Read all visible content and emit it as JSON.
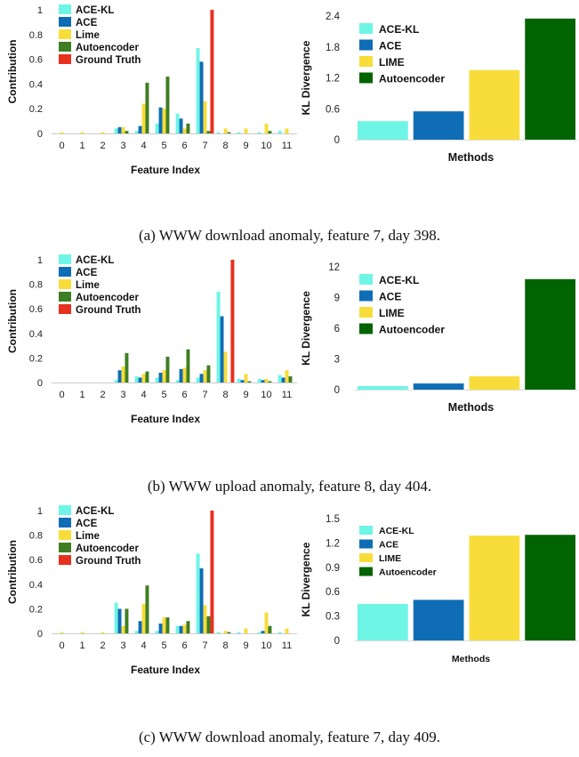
{
  "colors": {
    "ace_kl": "#6ef5e6",
    "ace": "#0f6db5",
    "lime": "#f8dd3a",
    "autoencoder": "#3f7e23",
    "ground_truth": "#e8301e",
    "ae_dark": "#006400"
  },
  "panels": [
    {
      "caption": "(a) WWW download anomaly, feature 7, day 398.",
      "left": {
        "type": "bar",
        "ylabel": "Contribution",
        "xlabel": "Feature Index",
        "ylim": [
          0,
          1
        ],
        "yticks": [
          "0",
          "0.2",
          "0.4",
          "0.6",
          "0.8",
          "1"
        ],
        "categories": [
          "0",
          "1",
          "2",
          "3",
          "4",
          "5",
          "6",
          "7",
          "8",
          "9",
          "10",
          "11"
        ],
        "legend": [
          "ACE-KL",
          "ACE",
          "Lime",
          "Autoencoder",
          "Ground Truth"
        ],
        "series": [
          {
            "name": "ACE-KL",
            "values": [
              0,
              0,
              0,
              0.04,
              0.02,
              0.08,
              0.16,
              0.69,
              0.01,
              0.01,
              0.01,
              0.02
            ]
          },
          {
            "name": "ACE",
            "values": [
              0,
              0,
              0,
              0.05,
              0.06,
              0.21,
              0.12,
              0.58,
              0,
              0,
              0,
              0
            ]
          },
          {
            "name": "Lime",
            "values": [
              0.01,
              0.01,
              0.01,
              0.05,
              0.24,
              0.2,
              0.04,
              0.26,
              0.04,
              0.04,
              0.08,
              0.04
            ]
          },
          {
            "name": "Autoencoder",
            "values": [
              0,
              0,
              0,
              0.02,
              0.41,
              0.46,
              0.08,
              0.02,
              0.01,
              0,
              0.02,
              0
            ]
          },
          {
            "name": "Ground Truth",
            "values": [
              0,
              0,
              0,
              0,
              0,
              0,
              0,
              1,
              0,
              0,
              0,
              0
            ]
          }
        ]
      },
      "right": {
        "type": "bar",
        "ylabel": "KL Divergence",
        "xlabel": "Methods",
        "ylim": [
          0,
          2.4
        ],
        "yticks": [
          "0",
          "0.6",
          "1.2",
          "1.8",
          "2.4"
        ],
        "legend": [
          "ACE-KL",
          "ACE",
          "LIME",
          "Autoencoder"
        ],
        "categories": [
          "ACE-KL",
          "ACE",
          "LIME",
          "Autoencoder"
        ],
        "values": [
          0.36,
          0.55,
          1.35,
          2.35
        ]
      }
    },
    {
      "caption": "(b) WWW upload anomaly, feature 8, day 404.",
      "left": {
        "type": "bar",
        "ylabel": "Contribution",
        "xlabel": "Feature Index",
        "ylim": [
          0,
          1
        ],
        "yticks": [
          "0",
          "0.2",
          "0.4",
          "0.6",
          "0.8",
          "1"
        ],
        "categories": [
          "0",
          "1",
          "2",
          "3",
          "4",
          "5",
          "6",
          "7",
          "8",
          "9",
          "10",
          "11"
        ],
        "legend": [
          "ACE-KL",
          "ACE",
          "Lime",
          "Autoencoder",
          "Ground Truth"
        ],
        "series": [
          {
            "name": "ACE-KL",
            "values": [
              0,
              0,
              0,
              0.02,
              0.05,
              0.04,
              0.02,
              0.04,
              0.74,
              0.03,
              0.03,
              0.06
            ]
          },
          {
            "name": "ACE",
            "values": [
              0,
              0,
              0,
              0.1,
              0.04,
              0.08,
              0.11,
              0.07,
              0.54,
              0.02,
              0.02,
              0.04
            ]
          },
          {
            "name": "Lime",
            "values": [
              0,
              0,
              0,
              0.13,
              0.07,
              0.1,
              0.12,
              0.1,
              0.25,
              0.07,
              0.03,
              0.1
            ]
          },
          {
            "name": "Autoencoder",
            "values": [
              0,
              0,
              0,
              0.24,
              0.09,
              0.21,
              0.27,
              0.14,
              0,
              0.01,
              0.01,
              0.05
            ]
          },
          {
            "name": "Ground Truth",
            "values": [
              0,
              0,
              0,
              0,
              0,
              0,
              0,
              0,
              1,
              0,
              0,
              0
            ]
          }
        ]
      },
      "right": {
        "type": "bar",
        "ylabel": "KL Divergence",
        "xlabel": "Methods",
        "ylim": [
          0,
          12
        ],
        "yticks": [
          "0",
          "3",
          "6",
          "9",
          "12"
        ],
        "legend": [
          "ACE-KL",
          "ACE",
          "LIME",
          "Autoencoder"
        ],
        "categories": [
          "ACE-KL",
          "ACE",
          "LIME",
          "Autoencoder"
        ],
        "values": [
          0.35,
          0.6,
          1.3,
          10.8
        ]
      }
    },
    {
      "caption": "(c) WWW download anomaly, feature 7, day 409.",
      "left": {
        "type": "bar",
        "ylabel": "Contribution",
        "xlabel": "Feature Index",
        "ylim": [
          0,
          1
        ],
        "yticks": [
          "0",
          "0.2",
          "0.4",
          "0.6",
          "0.8",
          "1"
        ],
        "categories": [
          "0",
          "1",
          "2",
          "3",
          "4",
          "5",
          "6",
          "7",
          "8",
          "9",
          "10",
          "11"
        ],
        "legend": [
          "ACE-KL",
          "ACE",
          "Lime",
          "Autoencoder",
          "Ground Truth"
        ],
        "series": [
          {
            "name": "ACE-KL",
            "values": [
              0,
              0,
              0,
              0.25,
              0.02,
              0.02,
              0.06,
              0.65,
              0.01,
              0.01,
              0.01,
              0.01
            ]
          },
          {
            "name": "ACE",
            "values": [
              0,
              0,
              0,
              0.2,
              0.1,
              0.08,
              0.06,
              0.53,
              0,
              0,
              0.02,
              0
            ]
          },
          {
            "name": "Lime",
            "values": [
              0.01,
              0.01,
              0.01,
              0.06,
              0.24,
              0.13,
              0.07,
              0.23,
              0.02,
              0.04,
              0.17,
              0.04
            ]
          },
          {
            "name": "Autoencoder",
            "values": [
              0,
              0,
              0,
              0.2,
              0.39,
              0.13,
              0.1,
              0.14,
              0.01,
              0,
              0.06,
              0
            ]
          },
          {
            "name": "Ground Truth",
            "values": [
              0,
              0,
              0,
              0,
              0,
              0,
              0,
              1,
              0,
              0,
              0,
              0
            ]
          }
        ]
      },
      "right": {
        "type": "bar",
        "ylabel": "KL Divergence",
        "xlabel": "Methods",
        "ylim": [
          0,
          1.5
        ],
        "yticks": [
          "0",
          "0.3",
          "0.6",
          "0.9",
          "1.2",
          "1.5"
        ],
        "legend": [
          "ACE-KL",
          "ACE",
          "LIME",
          "Autoencoder"
        ],
        "categories": [
          "ACE-KL",
          "ACE",
          "LIME",
          "Autoencoder"
        ],
        "values": [
          0.45,
          0.5,
          1.29,
          1.3
        ]
      }
    }
  ]
}
